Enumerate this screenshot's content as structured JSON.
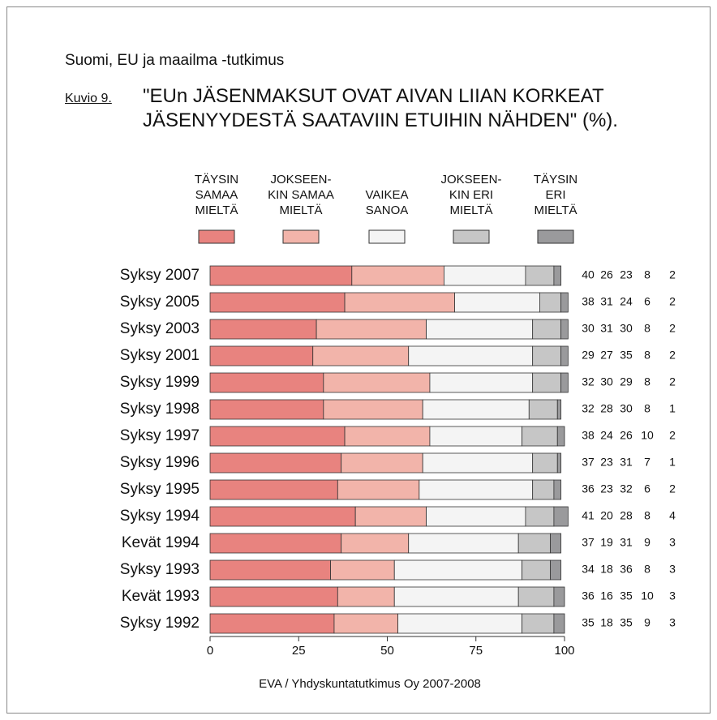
{
  "chart_data": {
    "type": "stacked-barh",
    "header": "Suomi, EU ja maailma -tutkimus",
    "figure_label": "Kuvio 9.",
    "title": "\"EUn JÄSENMAKSUT OVAT AIVAN LIIAN KORKEAT\nJÄSENYYDESTÄ SAATAVIIN ETUIHIN NÄHDEN\" (%).",
    "source": "EVA / Yhdyskuntatutkimus Oy 2007-2008",
    "categories": [
      "Syksy 2007",
      "Syksy 2005",
      "Syksy 2003",
      "Syksy 2001",
      "Syksy 1999",
      "Syksy 1998",
      "Syksy 1997",
      "Syksy 1996",
      "Syksy 1995",
      "Syksy 1994",
      "Kevät 1994",
      "Syksy 1993",
      "Kevät 1993",
      "Syksy 1992"
    ],
    "series": [
      {
        "name": "TÄYSIN\nSAMAA\nMIELTÄ",
        "color": "#e8837f",
        "values": [
          40,
          38,
          30,
          29,
          32,
          32,
          38,
          37,
          36,
          41,
          37,
          34,
          36,
          35
        ]
      },
      {
        "name": "JOKSEEN-\nKIN SAMAA\nMIELTÄ",
        "color": "#f2b4aa",
        "values": [
          26,
          31,
          31,
          27,
          30,
          28,
          24,
          23,
          23,
          20,
          19,
          18,
          16,
          18
        ]
      },
      {
        "name": "VAIKEA\nSANOA",
        "color": "#f4f4f4",
        "values": [
          23,
          24,
          30,
          35,
          29,
          30,
          26,
          31,
          32,
          28,
          31,
          36,
          35,
          35
        ]
      },
      {
        "name": "JOKSEEN-\nKIN ERI\nMIELTÄ",
        "color": "#c6c6c6",
        "values": [
          8,
          6,
          8,
          8,
          8,
          8,
          10,
          7,
          6,
          8,
          9,
          8,
          10,
          9
        ]
      },
      {
        "name": "TÄYSIN\nERI\nMIELTÄ",
        "color": "#9a9a9c",
        "values": [
          2,
          2,
          2,
          2,
          2,
          1,
          2,
          1,
          2,
          4,
          3,
          3,
          3,
          3
        ]
      }
    ],
    "xlim": [
      0,
      100
    ],
    "xticks": [
      0,
      25,
      50,
      75,
      100
    ]
  }
}
